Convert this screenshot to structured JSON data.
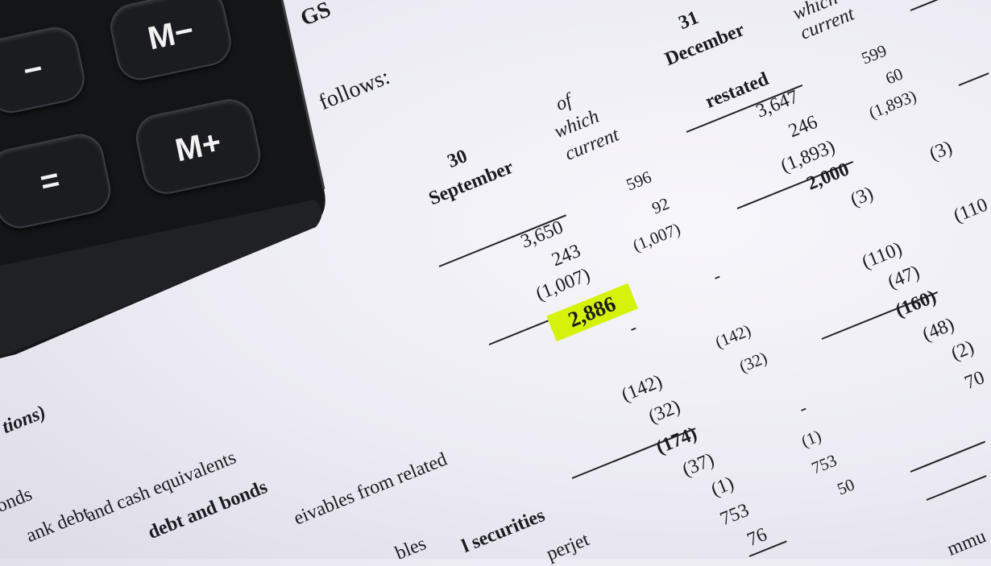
{
  "calculator": {
    "keys": [
      "−",
      "M−",
      "=",
      "M+"
    ],
    "body_color": "#141517"
  },
  "document": {
    "headings": {
      "gs": "GS",
      "follows": "follows:",
      "col1_day": "30",
      "col1_month": "September",
      "col2_of": "of",
      "col2_which": "which",
      "col2_current": "current",
      "col3_day": "31",
      "col3_month": "December",
      "col3_restated": "restated",
      "col4_which": "which",
      "col4_current": "current"
    },
    "col_sept": [
      "3,650",
      "243",
      "(1,007)",
      "2,886",
      "-",
      "(142)",
      "(32)",
      "(174)",
      "(37)",
      "(1)",
      "753",
      "76"
    ],
    "col_sept_current": [
      "596",
      "92",
      "(1,007)",
      "-",
      "(142)",
      "(32)",
      "-",
      "(1)",
      "753",
      "50"
    ],
    "col_dec": [
      "3,647",
      "246",
      "(1,893)",
      "2,000",
      "(3)",
      "(110)",
      "(47)",
      "(160)",
      "(48)",
      "(2)",
      "70"
    ],
    "col_dec_current": [
      "599",
      "60",
      "(1,893)",
      "(3)",
      "(110"
    ],
    "labels": [
      "tions)",
      "onds",
      "ank debt",
      "and cash equivalents",
      "debt and bonds",
      "eivables from related",
      "bles",
      "l securities",
      "perjet",
      "mmu"
    ],
    "highlight_color": "#d7f20a"
  }
}
